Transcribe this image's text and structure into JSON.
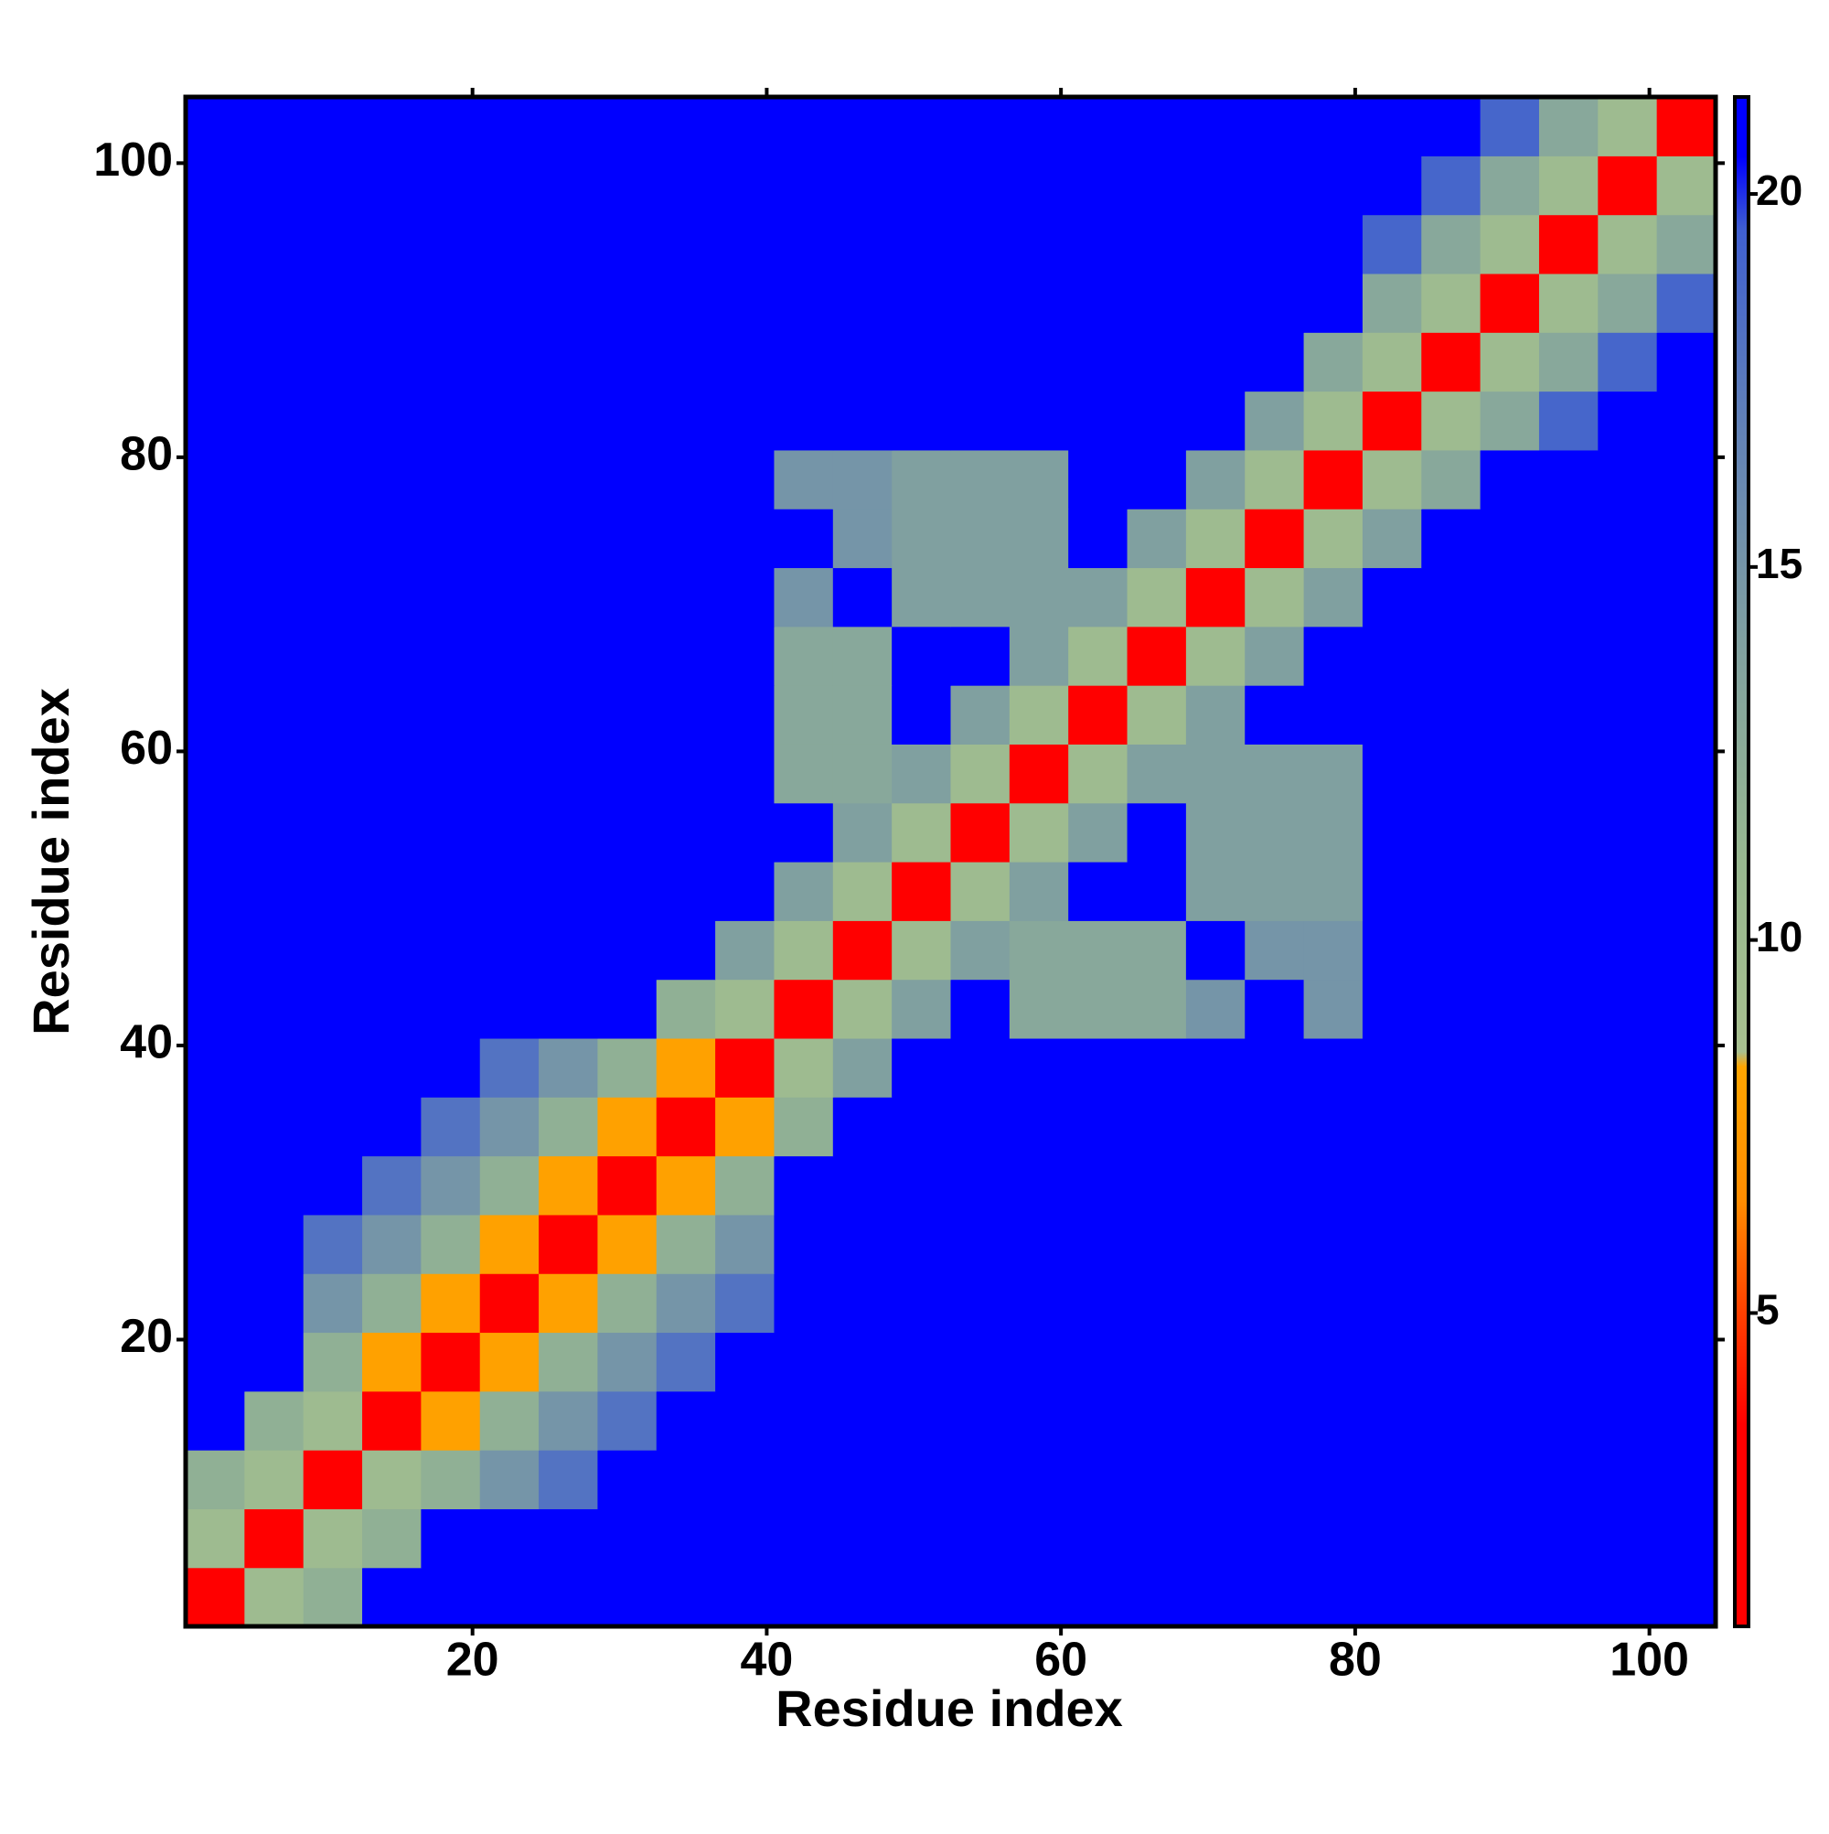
{
  "chart_data": {
    "type": "heatmap",
    "xlabel": "Residue index",
    "ylabel": "Residue index",
    "xbins": [
      0.5,
      4.5,
      8.5,
      12.5,
      16.5,
      20.5,
      24.5,
      28.5,
      32.5,
      36.5,
      40.5,
      44.5,
      48.5,
      52.5,
      56.5,
      60.5,
      64.5,
      68.5,
      72.5,
      76.5,
      80.5,
      84.5,
      88.5,
      92.5,
      96.5,
      100.5,
      104.5
    ],
    "ybins": [
      0.5,
      4.5,
      8.5,
      12.5,
      16.5,
      20.5,
      24.5,
      28.5,
      32.5,
      36.5,
      40.5,
      44.5,
      48.5,
      52.5,
      56.5,
      60.5,
      64.5,
      68.5,
      72.5,
      76.5,
      80.5,
      84.5,
      88.5,
      92.5,
      96.5,
      100.5,
      104.5
    ],
    "z": [
      [
        2,
        10,
        12,
        21,
        21,
        21,
        21,
        21,
        21,
        21,
        21,
        21,
        21,
        21,
        21,
        21,
        21,
        21,
        21,
        21,
        21,
        21,
        21,
        21,
        21,
        21
      ],
      [
        10,
        2,
        10,
        12,
        21,
        21,
        21,
        21,
        21,
        21,
        21,
        21,
        21,
        21,
        21,
        21,
        21,
        21,
        21,
        21,
        21,
        21,
        21,
        21,
        21,
        21
      ],
      [
        12,
        10,
        2,
        10,
        12,
        15,
        18,
        21,
        21,
        21,
        21,
        21,
        21,
        21,
        21,
        21,
        21,
        21,
        21,
        21,
        21,
        21,
        21,
        21,
        21,
        21
      ],
      [
        21,
        12,
        10,
        2,
        8,
        12,
        15,
        18,
        21,
        21,
        21,
        21,
        21,
        21,
        21,
        21,
        21,
        21,
        21,
        21,
        21,
        21,
        21,
        21,
        21,
        21
      ],
      [
        21,
        21,
        12,
        8,
        2,
        8,
        12,
        15,
        18,
        21,
        21,
        21,
        21,
        21,
        21,
        21,
        21,
        21,
        21,
        21,
        21,
        21,
        21,
        21,
        21,
        21
      ],
      [
        21,
        21,
        15,
        12,
        8,
        2,
        8,
        12,
        15,
        18,
        21,
        21,
        21,
        21,
        21,
        21,
        21,
        21,
        21,
        21,
        21,
        21,
        21,
        21,
        21,
        21
      ],
      [
        21,
        21,
        18,
        15,
        12,
        8,
        2,
        8,
        12,
        15,
        21,
        21,
        21,
        21,
        21,
        21,
        21,
        21,
        21,
        21,
        21,
        21,
        21,
        21,
        21,
        21
      ],
      [
        21,
        21,
        21,
        18,
        15,
        12,
        8,
        2,
        8,
        12,
        21,
        21,
        21,
        21,
        21,
        21,
        21,
        21,
        21,
        21,
        21,
        21,
        21,
        21,
        21,
        21
      ],
      [
        21,
        21,
        21,
        21,
        18,
        15,
        12,
        8,
        2,
        8,
        12,
        21,
        21,
        21,
        21,
        21,
        21,
        21,
        21,
        21,
        21,
        21,
        21,
        21,
        21,
        21
      ],
      [
        21,
        21,
        21,
        21,
        21,
        18,
        15,
        12,
        8,
        2,
        10,
        14,
        21,
        21,
        21,
        21,
        21,
        21,
        21,
        21,
        21,
        21,
        21,
        21,
        21,
        21
      ],
      [
        21,
        21,
        21,
        21,
        21,
        21,
        21,
        21,
        12,
        10,
        2,
        10,
        14,
        21,
        13,
        13,
        13,
        15,
        21,
        15,
        21,
        21,
        21,
        21,
        21,
        21
      ],
      [
        21,
        21,
        21,
        21,
        21,
        21,
        21,
        21,
        21,
        14,
        10,
        2,
        10,
        14,
        13,
        13,
        13,
        21,
        15,
        15,
        21,
        21,
        21,
        21,
        21,
        21
      ],
      [
        21,
        21,
        21,
        21,
        21,
        21,
        21,
        21,
        21,
        21,
        14,
        10,
        2,
        10,
        14,
        21,
        21,
        14,
        14,
        14,
        21,
        21,
        21,
        21,
        21,
        21
      ],
      [
        21,
        21,
        21,
        21,
        21,
        21,
        21,
        21,
        21,
        21,
        21,
        14,
        10,
        2,
        10,
        14,
        21,
        14,
        14,
        14,
        21,
        21,
        21,
        21,
        21,
        21
      ],
      [
        21,
        21,
        21,
        21,
        21,
        21,
        21,
        21,
        21,
        21,
        13,
        13,
        14,
        10,
        2,
        10,
        14,
        14,
        14,
        14,
        21,
        21,
        21,
        21,
        21,
        21
      ],
      [
        21,
        21,
        21,
        21,
        21,
        21,
        21,
        21,
        21,
        21,
        13,
        13,
        21,
        14,
        10,
        2,
        10,
        14,
        21,
        21,
        21,
        21,
        21,
        21,
        21,
        21
      ],
      [
        21,
        21,
        21,
        21,
        21,
        21,
        21,
        21,
        21,
        21,
        13,
        13,
        21,
        21,
        14,
        10,
        2,
        10,
        14,
        21,
        21,
        21,
        21,
        21,
        21,
        21
      ],
      [
        21,
        21,
        21,
        21,
        21,
        21,
        21,
        21,
        21,
        21,
        15,
        21,
        14,
        14,
        14,
        14,
        10,
        2,
        10,
        14,
        21,
        21,
        21,
        21,
        21,
        21
      ],
      [
        21,
        21,
        21,
        21,
        21,
        21,
        21,
        21,
        21,
        21,
        21,
        15,
        14,
        14,
        14,
        21,
        14,
        10,
        2,
        10,
        14,
        21,
        21,
        21,
        21,
        21
      ],
      [
        21,
        21,
        21,
        21,
        21,
        21,
        21,
        21,
        21,
        21,
        15,
        15,
        14,
        14,
        14,
        21,
        21,
        14,
        10,
        2,
        10,
        13,
        21,
        21,
        21,
        21
      ],
      [
        21,
        21,
        21,
        21,
        21,
        21,
        21,
        21,
        21,
        21,
        21,
        21,
        21,
        21,
        21,
        21,
        21,
        21,
        14,
        10,
        2,
        10,
        13,
        19,
        21,
        21
      ],
      [
        21,
        21,
        21,
        21,
        21,
        21,
        21,
        21,
        21,
        21,
        21,
        21,
        21,
        21,
        21,
        21,
        21,
        21,
        21,
        13,
        10,
        2,
        10,
        13,
        19,
        21
      ],
      [
        21,
        21,
        21,
        21,
        21,
        21,
        21,
        21,
        21,
        21,
        21,
        21,
        21,
        21,
        21,
        21,
        21,
        21,
        21,
        21,
        13,
        10,
        2,
        10,
        13,
        19
      ],
      [
        21,
        21,
        21,
        21,
        21,
        21,
        21,
        21,
        21,
        21,
        21,
        21,
        21,
        21,
        21,
        21,
        21,
        21,
        21,
        21,
        19,
        13,
        10,
        2,
        10,
        13
      ],
      [
        21,
        21,
        21,
        21,
        21,
        21,
        21,
        21,
        21,
        21,
        21,
        21,
        21,
        21,
        21,
        21,
        21,
        21,
        21,
        21,
        21,
        19,
        13,
        10,
        2,
        10
      ],
      [
        21,
        21,
        21,
        21,
        21,
        21,
        21,
        21,
        21,
        21,
        21,
        21,
        21,
        21,
        21,
        21,
        21,
        21,
        21,
        21,
        21,
        21,
        19,
        13,
        10,
        2
      ]
    ],
    "xlim": [
      0.5,
      104.5
    ],
    "ylim": [
      0.5,
      104.5
    ],
    "xticks": [
      20,
      40,
      60,
      80,
      100
    ],
    "yticks": [
      20,
      40,
      60,
      80,
      100
    ],
    "zlim": [
      0.8,
      21.3
    ],
    "colorbar_ticks": [
      5,
      10,
      15,
      20
    ],
    "colorscale": [
      {
        "value": 0.8,
        "color": "#ff0000"
      },
      {
        "value": 3.5,
        "color": "#ff0000"
      },
      {
        "value": 5,
        "color": "#ff4000"
      },
      {
        "value": 6.5,
        "color": "#ff8c00"
      },
      {
        "value": 8.3,
        "color": "#ffa500"
      },
      {
        "value": 8.5,
        "color": "#a8c090"
      },
      {
        "value": 11,
        "color": "#98b890"
      },
      {
        "value": 14,
        "color": "#80a0a0"
      },
      {
        "value": 17,
        "color": "#6080b8"
      },
      {
        "value": 19.5,
        "color": "#4060d0"
      },
      {
        "value": 20.5,
        "color": "#0000ff"
      },
      {
        "value": 21.3,
        "color": "#0000ff"
      }
    ]
  }
}
